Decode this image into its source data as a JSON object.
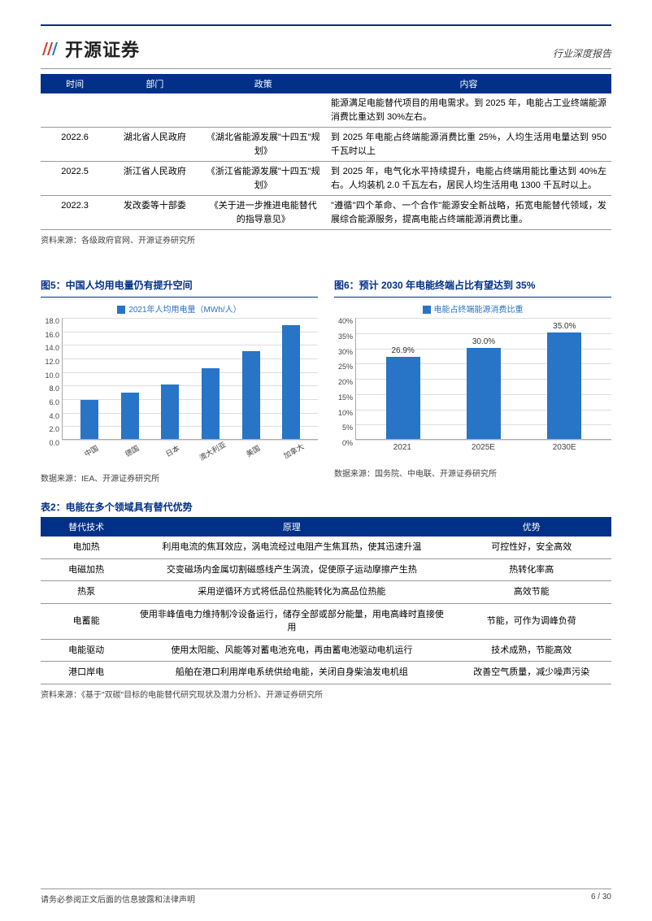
{
  "header": {
    "logo_text": "开源证券",
    "doc_type": "行业深度报告"
  },
  "policy_table": {
    "columns": [
      "时间",
      "部门",
      "政策",
      "内容"
    ],
    "rows": [
      {
        "time": "",
        "dept": "",
        "policy": "",
        "content": "能源满足电能替代项目的用电需求。到 2025 年，电能占工业终端能源消费比重达到 30%左右。"
      },
      {
        "time": "2022.6",
        "dept": "湖北省人民政府",
        "policy": "《湖北省能源发展\"十四五\"规划》",
        "content": "到 2025 年电能占终端能源消费比重 25%，人均生活用电量达到 950 千瓦时以上"
      },
      {
        "time": "2022.5",
        "dept": "浙江省人民政府",
        "policy": "《浙江省能源发展\"十四五\"规划》",
        "content": "到 2025 年，电气化水平持续提升，电能占终端用能比重达到 40%左右。人均装机 2.0 千瓦左右，居民人均生活用电 1300 千瓦时以上。"
      },
      {
        "time": "2022.3",
        "dept": "发改委等十部委",
        "policy": "《关于进一步推进电能替代的指导意见》",
        "content": "\"遵循\"四个革命、一个合作\"能源安全新战略，拓宽电能替代领域，发展综合能源服务，提高电能占终端能源消费比重。"
      }
    ],
    "source": "资料来源：各级政府官网、开源证券研究所"
  },
  "chart5": {
    "title": "图5：中国人均用电量仍有提升空间",
    "legend": "2021年人均用电量（MWh/人）",
    "type": "bar",
    "categories": [
      "中国",
      "德国",
      "日本",
      "澳大利亚",
      "美国",
      "加拿大"
    ],
    "values": [
      5.8,
      6.9,
      8.0,
      10.5,
      13.0,
      16.8
    ],
    "ylim": [
      0,
      18
    ],
    "ytick_step": 2,
    "bar_color": "#2874c7",
    "grid_color": "#ddd",
    "source": "数据来源：IEA、开源证券研究所"
  },
  "chart6": {
    "title": "图6：预计 2030 年电能终端占比有望达到 35%",
    "legend": "电能占终端能源消费比重",
    "type": "bar",
    "categories": [
      "2021",
      "2025E",
      "2030E"
    ],
    "values": [
      26.9,
      30.0,
      35.0
    ],
    "value_labels": [
      "26.9%",
      "30.0%",
      "35.0%"
    ],
    "ylim": [
      0,
      40
    ],
    "ytick_step": 5,
    "bar_color": "#2874c7",
    "grid_color": "#ddd",
    "source": "数据来源：国务院、中电联、开源证券研究所"
  },
  "tech_table": {
    "title": "表2：电能在多个领域具有替代优势",
    "columns": [
      "替代技术",
      "原理",
      "优势"
    ],
    "rows": [
      {
        "tech": "电加热",
        "principle": "利用电流的焦耳效应，涡电流经过电阻产生焦耳热，使其迅速升温",
        "adv": "可控性好，安全高效"
      },
      {
        "tech": "电磁加热",
        "principle": "交变磁场内金属切割磁感线产生涡流，促使原子运动摩擦产生热",
        "adv": "热转化率高"
      },
      {
        "tech": "热泵",
        "principle": "采用逆循环方式将低品位热能转化为高品位热能",
        "adv": "高效节能"
      },
      {
        "tech": "电蓄能",
        "principle": "使用非峰值电力维持制冷设备运行，储存全部或部分能量，用电高峰时直接使用",
        "adv": "节能，可作为调峰负荷"
      },
      {
        "tech": "电能驱动",
        "principle": "使用太阳能、风能等对蓄电池充电，再由蓄电池驱动电机运行",
        "adv": "技术成熟，节能高效"
      },
      {
        "tech": "港口岸电",
        "principle": "船舶在港口利用岸电系统供给电能，关闭自身柴油发电机组",
        "adv": "改善空气质量，减少噪声污染"
      }
    ],
    "source": "资料来源：《基于\"双碳\"目标的电能替代研究现状及潜力分析》、开源证券研究所"
  },
  "footer": {
    "disclaimer": "请务必参阅正文后面的信息披露和法律声明",
    "page": "6 / 30"
  },
  "colors": {
    "brand_blue": "#003087",
    "chart_blue": "#2874c7",
    "logo_red": "#d9302a",
    "logo_blue": "#2171b5"
  }
}
